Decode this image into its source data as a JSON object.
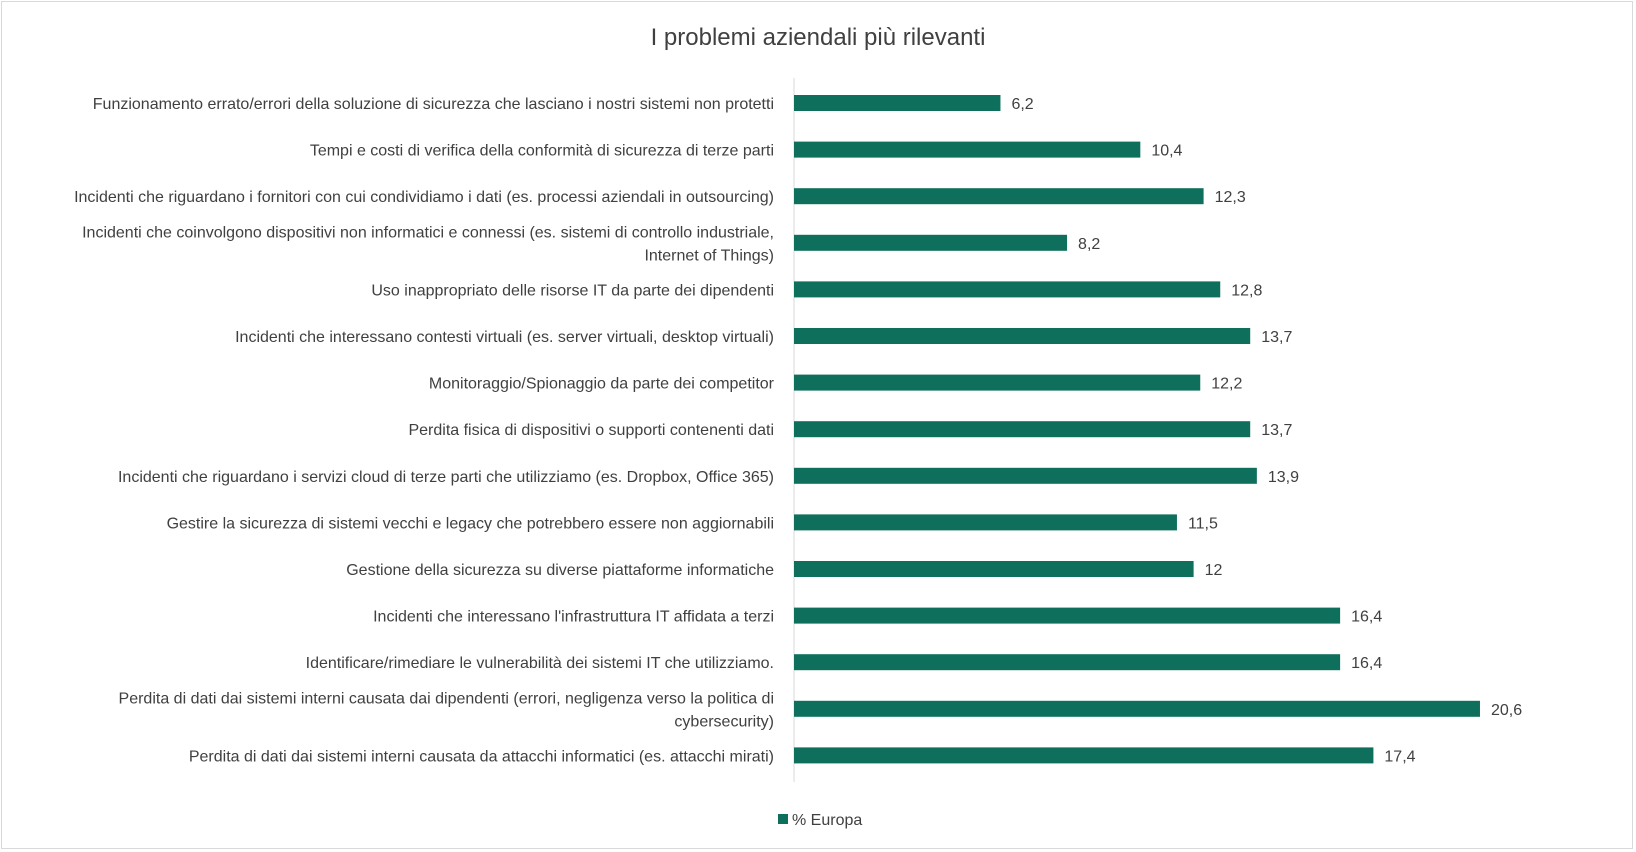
{
  "chart_data": {
    "type": "bar",
    "orientation": "horizontal",
    "title": "I problemi aziendali più rilevanti",
    "categories": [
      [
        "Funzionamento errato/errori della soluzione di sicurezza che lasciano i nostri sistemi non protetti"
      ],
      [
        "Tempi e costi di verifica della conformità di sicurezza di terze parti"
      ],
      [
        "Incidenti che riguardano i fornitori con cui condividiamo i dati (es. processi aziendali in outsourcing)"
      ],
      [
        "Incidenti che coinvolgono dispositivi non informatici e connessi (es. sistemi di controllo industriale,",
        "Internet of Things)"
      ],
      [
        "Uso inappropriato delle risorse IT da parte dei dipendenti"
      ],
      [
        "Incidenti che interessano contesti virtuali (es. server virtuali, desktop virtuali)"
      ],
      [
        "Monitoraggio/Spionaggio da parte dei competitor"
      ],
      [
        "Perdita fisica di dispositivi o supporti contenenti dati"
      ],
      [
        "Incidenti che riguardano i servizi cloud di terze parti che utilizziamo (es. Dropbox, Office 365)"
      ],
      [
        "Gestire la sicurezza di sistemi vecchi e legacy che potrebbero essere non aggiornabili"
      ],
      [
        "Gestione della sicurezza su diverse piattaforme informatiche"
      ],
      [
        "Incidenti che interessano l'infrastruttura IT affidata a terzi"
      ],
      [
        "Identificare/rimediare le vulnerabilità dei sistemi IT che utilizziamo."
      ],
      [
        "Perdita di dati dai sistemi interni causata dai dipendenti (errori, negligenza verso la politica di",
        "cybersecurity)"
      ],
      [
        "Perdita di dati dai sistemi interni causata da attacchi informatici (es. attacchi mirati)"
      ]
    ],
    "series": [
      {
        "name": "% Europa",
        "color": "#0e6f5c",
        "values": [
          6.2,
          10.4,
          12.3,
          8.2,
          12.8,
          13.7,
          12.2,
          13.7,
          13.9,
          11.5,
          12,
          16.4,
          16.4,
          20.6,
          17.4
        ],
        "value_labels": [
          "6,2",
          "10,4",
          "12,3",
          "8,2",
          "12,8",
          "13,7",
          "12,2",
          "13,7",
          "13,9",
          "11,5",
          "12",
          "16,4",
          "16,4",
          "20,6",
          "17,4"
        ]
      }
    ],
    "xlim": [
      0,
      22
    ],
    "grid": false,
    "legend": "bottom-center"
  }
}
